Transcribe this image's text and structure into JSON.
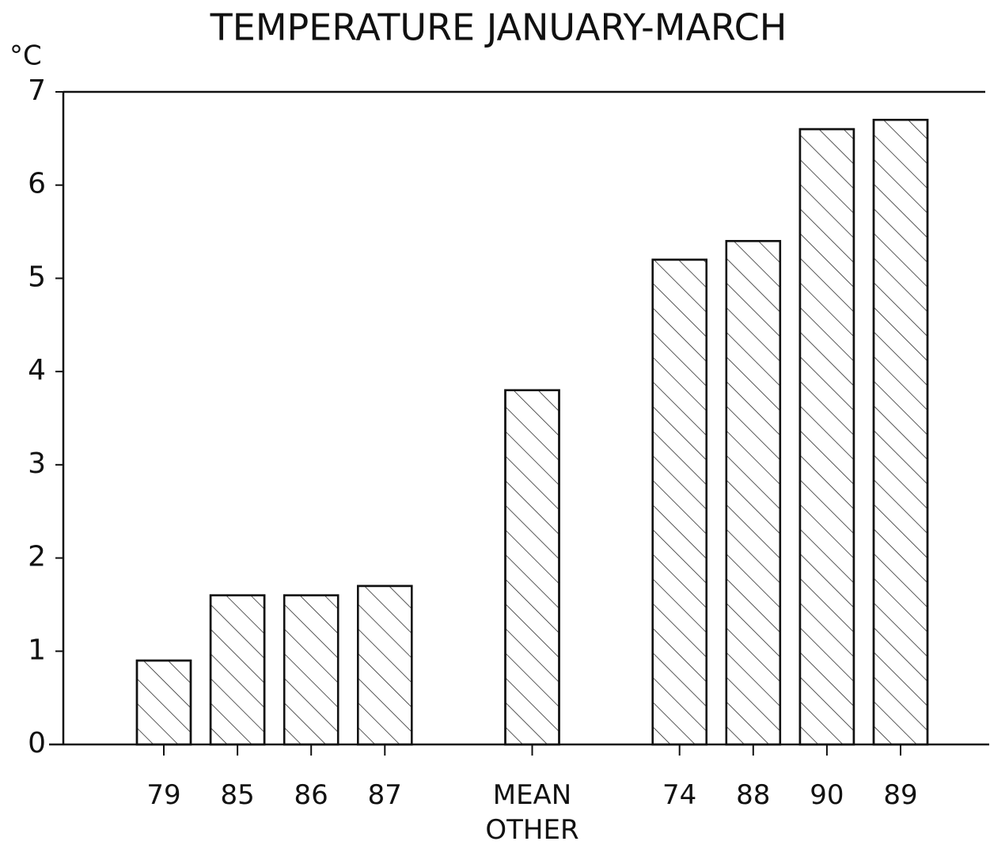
{
  "chart_data": {
    "type": "bar",
    "title": "TEMPERATURE JANUARY-MARCH",
    "y_label": "°C",
    "categories": [
      "79",
      "85",
      "86",
      "87",
      null,
      "MEAN OTHER",
      null,
      "74",
      "88",
      "90",
      "89"
    ],
    "values": [
      0.9,
      1.6,
      1.6,
      1.7,
      null,
      3.8,
      null,
      5.2,
      5.4,
      6.6,
      6.7
    ],
    "color": "#ffffff",
    "ylim": [
      0,
      7
    ],
    "yticks": [
      0,
      1,
      2,
      3,
      4,
      5,
      6,
      7
    ],
    "grid": false
  }
}
